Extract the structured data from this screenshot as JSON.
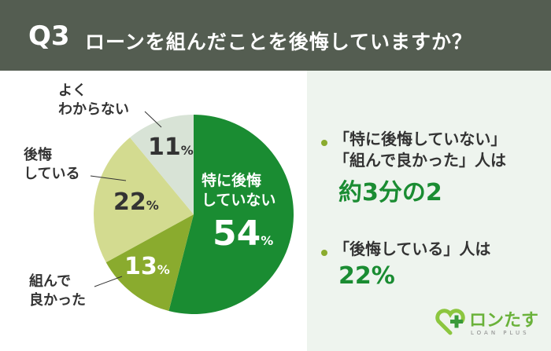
{
  "header": {
    "q": "Q3",
    "title": "ローンを組んだことを後悔していますか？"
  },
  "summary": {
    "item1_line1": "「特に後悔していない」",
    "item1_line2": "「組んで良かった」人は",
    "item1_value": "約3分の2",
    "item2_line1": "「後悔している」人は",
    "item2_value": "22%"
  },
  "logo": {
    "name": "ロンたす",
    "sub": "LOAN PLUS"
  },
  "chart_data": {
    "type": "pie",
    "start": "top",
    "direction": "clockwise",
    "unit": "%",
    "slices": [
      {
        "label": "特に後悔していない",
        "label_line1": "特に後悔",
        "label_line2": "していない",
        "value": 54,
        "color": "#1a8c32"
      },
      {
        "label": "組んで良かった",
        "label_line1": "組んで",
        "label_line2": "良かった",
        "value": 13,
        "color": "#8aab2e"
      },
      {
        "label": "後悔している",
        "label_line1": "後悔",
        "label_line2": "している",
        "value": 22,
        "color": "#d3db90"
      },
      {
        "label": "よくわからない",
        "label_line1": "よく",
        "label_line2": "わからない",
        "value": 11,
        "color": "#d8e3d6"
      }
    ]
  }
}
